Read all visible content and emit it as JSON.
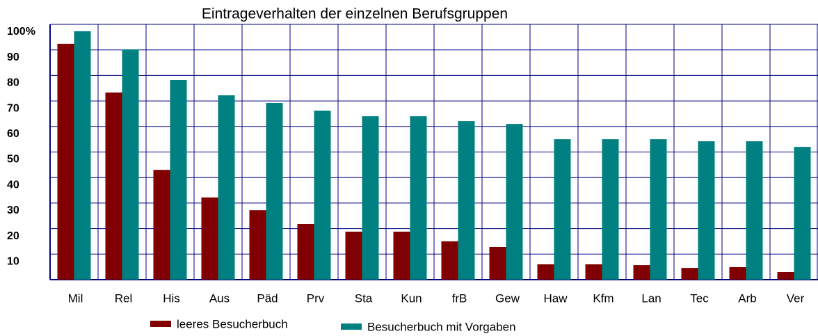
{
  "chart_data": {
    "type": "bar",
    "title": "Eintrageverhalten der einzelnen Berufsgruppen",
    "categories": [
      "Mil",
      "Rel",
      "His",
      "Aus",
      "Päd",
      "Prv",
      "Sta",
      "Kun",
      "frB",
      "Gew",
      "Haw",
      "Kfm",
      "Lan",
      "Tec",
      "Arb",
      "Ver"
    ],
    "series": [
      {
        "name": "leeres Besucherbuch",
        "color": "#800000",
        "values": [
          92.4,
          73.3,
          43,
          32.2,
          27.2,
          21.8,
          18.8,
          18.8,
          15,
          12.8,
          6,
          6,
          5.7,
          4.6,
          4.9,
          3
        ]
      },
      {
        "name": "Besucherbuch mit Vorgaben",
        "color": "#008080",
        "values": [
          97.3,
          90.2,
          78.2,
          72.2,
          69.2,
          66.2,
          64,
          64,
          62.1,
          61,
          55,
          55,
          55,
          54.2,
          54.2,
          52
        ]
      }
    ],
    "ylim": [
      0,
      100
    ],
    "yticks": [
      {
        "value": 100,
        "label": "100%"
      },
      90,
      80,
      70,
      60,
      50,
      40,
      30,
      20,
      10
    ],
    "grid": true
  }
}
